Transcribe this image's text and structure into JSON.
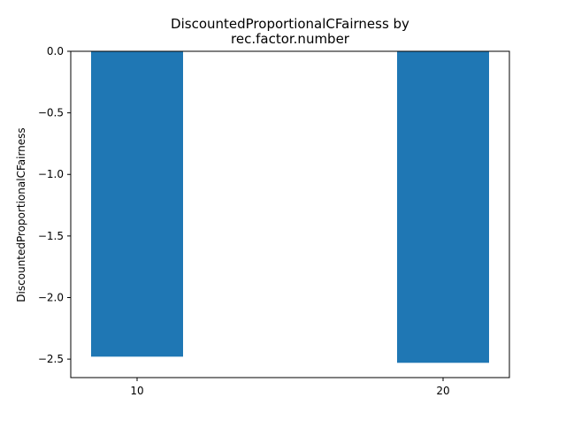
{
  "chart_data": {
    "type": "bar",
    "title_lines": [
      "DiscountedProportionalCFairness by",
      "rec.factor.number"
    ],
    "xlabel": "",
    "ylabel": "DiscountedProportionalCFairness",
    "categories": [
      "10",
      "20"
    ],
    "values": [
      -2.48,
      -2.53
    ],
    "ylim": [
      -2.65,
      0.0
    ],
    "yticks": [
      0.0,
      -0.5,
      -1.0,
      -1.5,
      -2.0,
      -2.5
    ],
    "ytick_labels": [
      "0.0",
      "−0.5",
      "−1.0",
      "−1.5",
      "−2.0",
      "−2.5"
    ],
    "bar_color": "#1f77b4",
    "grid": false,
    "legend": null
  }
}
